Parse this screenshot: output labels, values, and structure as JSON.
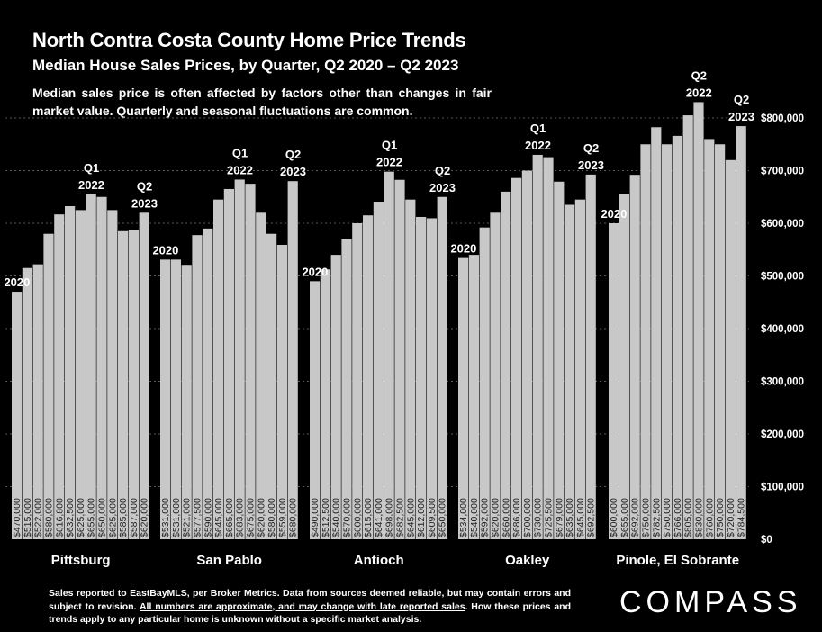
{
  "title": "North Contra Costa County Home Price Trends",
  "subtitle": "Median House Sales Prices, by Quarter, Q2 2020 – Q2 2023",
  "description": "Median sales price is often affected by factors other than changes in fair market value. Quarterly and seasonal fluctuations are common.",
  "footer": {
    "text1": "Sales reported to EastBayMLS, per Broker Metrics. Data from sources deemed reliable, but may contain errors and subject to revision. ",
    "underlined": "All numbers are approximate, and may change with late reported sales",
    "text2": ". How these prices and trends apply to any particular home is unknown without a specific market analysis."
  },
  "logo": "COMPASS",
  "chart_data": {
    "type": "bar",
    "ylim": [
      0,
      800000
    ],
    "yticks": [
      {
        "value": 0,
        "label": "$0"
      },
      {
        "value": 100000,
        "label": "$100,000"
      },
      {
        "value": 200000,
        "label": "$200,000"
      },
      {
        "value": 300000,
        "label": "$300,000"
      },
      {
        "value": 400000,
        "label": "$400,000"
      },
      {
        "value": 500000,
        "label": "$500,000"
      },
      {
        "value": 600000,
        "label": "$600,000"
      },
      {
        "value": 700000,
        "label": "$700,000"
      },
      {
        "value": 800000,
        "label": "$800,000"
      }
    ],
    "grid": true,
    "colors": {
      "bar": "#c8c8c8",
      "background": "#000000",
      "grid": "#5a5a5a",
      "text": "#ffffff"
    },
    "groups": [
      {
        "name": "Pittsburg",
        "values": [
          470000,
          515000,
          522000,
          580000,
          616800,
          632500,
          625000,
          655000,
          650000,
          625000,
          585000,
          587000,
          620000
        ],
        "labels": [
          "$470,000",
          "$515,000",
          "$522,000",
          "$580,000",
          "$616,800",
          "$632,500",
          "$625,000",
          "$655,000",
          "$650,000",
          "$625,000",
          "$585,000",
          "$587,000",
          "$620,000"
        ],
        "annotations": [
          {
            "index": 0,
            "text": [
              "2020"
            ]
          },
          {
            "index": 7,
            "text": [
              "Q1",
              "2022"
            ]
          },
          {
            "index": 12,
            "text": [
              "Q2",
              "2023"
            ]
          }
        ]
      },
      {
        "name": "San Pablo",
        "values": [
          531000,
          531000,
          521000,
          577500,
          590000,
          645000,
          665000,
          683000,
          675000,
          620000,
          580000,
          559000,
          680000
        ],
        "labels": [
          "$531,000",
          "$531,000",
          "$521,000",
          "$577,500",
          "$590,000",
          "$645,000",
          "$665,000",
          "$683,000",
          "$675,000",
          "$620,000",
          "$580,000",
          "$559,000",
          "$680,000"
        ],
        "annotations": [
          {
            "index": 0,
            "text": [
              "2020"
            ]
          },
          {
            "index": 7,
            "text": [
              "Q1",
              "2022"
            ]
          },
          {
            "index": 12,
            "text": [
              "Q2",
              "2023"
            ]
          }
        ]
      },
      {
        "name": "Antioch",
        "values": [
          490000,
          512500,
          540000,
          570000,
          600000,
          615000,
          641000,
          698000,
          682500,
          645000,
          612000,
          609500,
          650000
        ],
        "labels": [
          "$490,000",
          "$512,500",
          "$540,000",
          "$570,000",
          "$600,000",
          "$615,000",
          "$641,000",
          "$698,000",
          "$682,500",
          "$645,000",
          "$612,000",
          "$609,500",
          "$650,000"
        ],
        "annotations": [
          {
            "index": 0,
            "text": [
              "2020"
            ]
          },
          {
            "index": 7,
            "text": [
              "Q1",
              "2022"
            ]
          },
          {
            "index": 12,
            "text": [
              "Q2",
              "2023"
            ]
          }
        ]
      },
      {
        "name": "Oakley",
        "values": [
          534000,
          540000,
          592000,
          620000,
          660000,
          686000,
          700000,
          730000,
          725500,
          679000,
          635000,
          645000,
          692500
        ],
        "labels": [
          "$534,000",
          "$540,000",
          "$592,000",
          "$620,000",
          "$660,000",
          "$686,000",
          "$700,000",
          "$730,000",
          "$725,500",
          "$679,000",
          "$635,000",
          "$645,000",
          "$692,500"
        ],
        "annotations": [
          {
            "index": 0,
            "text": [
              "2020"
            ]
          },
          {
            "index": 7,
            "text": [
              "Q1",
              "2022"
            ]
          },
          {
            "index": 12,
            "text": [
              "Q2",
              "2023"
            ]
          }
        ]
      },
      {
        "name": "Pinole, El Sobrante",
        "values": [
          600000,
          655000,
          692000,
          750000,
          782500,
          750000,
          766000,
          805000,
          830000,
          760000,
          750000,
          720000,
          784500
        ],
        "labels": [
          "$600,000",
          "$655,000",
          "$692,000",
          "$750,000",
          "$782,500",
          "$750,000",
          "$766,000",
          "$805,000",
          "$830,000",
          "$760,000",
          "$750,000",
          "$720,000",
          "$784,500"
        ],
        "annotations": [
          {
            "index": 0,
            "text": [
              "2020"
            ]
          },
          {
            "index": 8,
            "text": [
              "Q2",
              "2022"
            ]
          },
          {
            "index": 12,
            "text": [
              "Q2",
              "2023"
            ]
          }
        ]
      }
    ]
  }
}
